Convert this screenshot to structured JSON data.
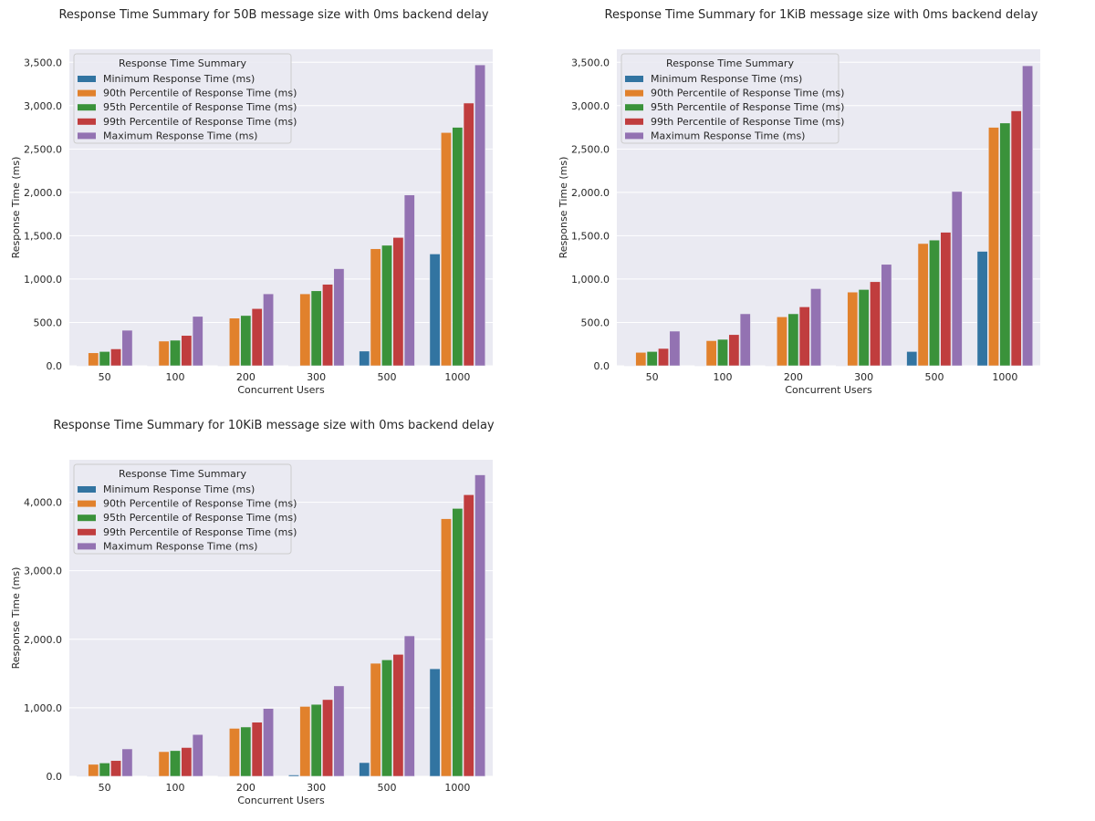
{
  "chart_data": [
    {
      "type": "bar",
      "title": "Response Time Summary for 50B message size with 0ms backend delay",
      "xlabel": "Concurrent Users",
      "ylabel": "Response Time (ms)",
      "categories": [
        "50",
        "100",
        "200",
        "300",
        "500",
        "1000"
      ],
      "ylim": [
        0,
        3650
      ],
      "yticks": [
        0,
        500,
        1000,
        1500,
        2000,
        2500,
        3000,
        3500
      ],
      "ytick_labels": [
        "0.0",
        "500.0",
        "1,000.0",
        "1,500.0",
        "2,000.0",
        "2,500.0",
        "3,000.0",
        "3,500.0"
      ],
      "legend_title": "Response Time Summary",
      "legend_position": "top-left",
      "grid": true,
      "series": [
        {
          "name": "Minimum Response Time (ms)",
          "color": "#3274a1",
          "values": [
            2,
            2,
            3,
            3,
            170,
            1290
          ]
        },
        {
          "name": "90th Percentile of Response Time (ms)",
          "color": "#e1812c",
          "values": [
            150,
            285,
            550,
            830,
            1350,
            2690
          ]
        },
        {
          "name": "95th Percentile of Response Time (ms)",
          "color": "#3a923a",
          "values": [
            165,
            295,
            580,
            865,
            1390,
            2750
          ]
        },
        {
          "name": "99th Percentile of Response Time (ms)",
          "color": "#c03d3e",
          "values": [
            195,
            350,
            660,
            940,
            1480,
            3030
          ]
        },
        {
          "name": "Maximum Response Time (ms)",
          "color": "#9372b2",
          "values": [
            410,
            570,
            830,
            1120,
            1970,
            3470
          ]
        }
      ]
    },
    {
      "type": "bar",
      "title": "Response Time Summary for 1KiB message size with 0ms backend delay",
      "xlabel": "Concurrent Users",
      "ylabel": "Response Time (ms)",
      "categories": [
        "50",
        "100",
        "200",
        "300",
        "500",
        "1000"
      ],
      "ylim": [
        0,
        3650
      ],
      "yticks": [
        0,
        500,
        1000,
        1500,
        2000,
        2500,
        3000,
        3500
      ],
      "ytick_labels": [
        "0.0",
        "500.0",
        "1,000.0",
        "1,500.0",
        "2,000.0",
        "2,500.0",
        "3,000.0",
        "3,500.0"
      ],
      "legend_title": "Response Time Summary",
      "legend_position": "top-left",
      "grid": true,
      "series": [
        {
          "name": "Minimum Response Time (ms)",
          "color": "#3274a1",
          "values": [
            2,
            2,
            3,
            3,
            165,
            1320
          ]
        },
        {
          "name": "90th Percentile of Response Time (ms)",
          "color": "#e1812c",
          "values": [
            155,
            290,
            565,
            850,
            1410,
            2750
          ]
        },
        {
          "name": "95th Percentile of Response Time (ms)",
          "color": "#3a923a",
          "values": [
            165,
            305,
            600,
            880,
            1450,
            2800
          ]
        },
        {
          "name": "99th Percentile of Response Time (ms)",
          "color": "#c03d3e",
          "values": [
            200,
            360,
            680,
            970,
            1540,
            2940
          ]
        },
        {
          "name": "Maximum Response Time (ms)",
          "color": "#9372b2",
          "values": [
            400,
            600,
            890,
            1170,
            2010,
            3460
          ]
        }
      ]
    },
    {
      "type": "bar",
      "title": "Response Time Summary for 10KiB message size with 0ms backend delay",
      "xlabel": "Concurrent Users",
      "ylabel": "Response Time (ms)",
      "categories": [
        "50",
        "100",
        "200",
        "300",
        "500",
        "1000"
      ],
      "ylim": [
        0,
        4620
      ],
      "yticks": [
        0,
        1000,
        2000,
        3000,
        4000
      ],
      "ytick_labels": [
        "0.0",
        "1,000.0",
        "2,000.0",
        "3,000.0",
        "4,000.0"
      ],
      "legend_title": "Response Time Summary",
      "legend_position": "top-left",
      "grid": true,
      "series": [
        {
          "name": "Minimum Response Time (ms)",
          "color": "#3274a1",
          "values": [
            2,
            2,
            3,
            20,
            200,
            1570
          ]
        },
        {
          "name": "90th Percentile of Response Time (ms)",
          "color": "#e1812c",
          "values": [
            175,
            360,
            700,
            1020,
            1650,
            3760
          ]
        },
        {
          "name": "95th Percentile of Response Time (ms)",
          "color": "#3a923a",
          "values": [
            195,
            375,
            720,
            1050,
            1700,
            3910
          ]
        },
        {
          "name": "99th Percentile of Response Time (ms)",
          "color": "#c03d3e",
          "values": [
            230,
            420,
            790,
            1120,
            1780,
            4110
          ]
        },
        {
          "name": "Maximum Response Time (ms)",
          "color": "#9372b2",
          "values": [
            400,
            610,
            990,
            1320,
            2050,
            4400
          ]
        }
      ]
    }
  ]
}
